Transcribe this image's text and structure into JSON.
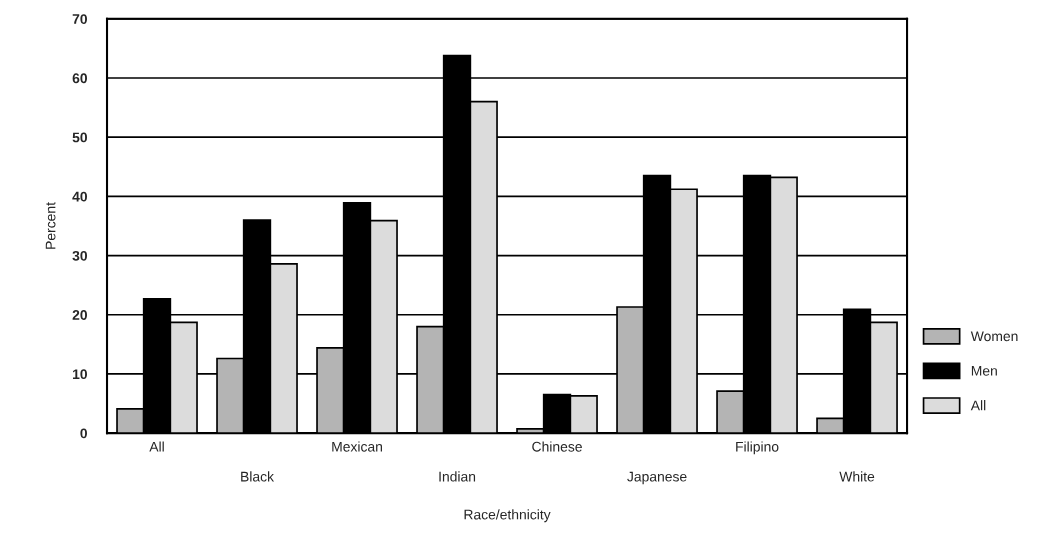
{
  "chart_data": {
    "type": "bar",
    "xlabel": "Race/ethnicity",
    "ylabel": "Percent",
    "categories": [
      "All",
      "Black",
      "Mexican",
      "Indian",
      "Chinese",
      "Japanese",
      "Filipino",
      "White"
    ],
    "series": [
      {
        "name": "Women",
        "color": "#b4b4b4",
        "values": [
          4.1,
          12.6,
          14.4,
          18,
          0.7,
          21.3,
          7.1,
          2.5
        ]
      },
      {
        "name": "Men",
        "color": "#000000",
        "values": [
          22.7,
          36,
          38.9,
          63.8,
          6.5,
          43.5,
          43.5,
          20.9
        ]
      },
      {
        "name": "All",
        "color": "#dcdcdc",
        "values": [
          18.7,
          28.6,
          35.9,
          56,
          6.3,
          41.2,
          43.2,
          18.7
        ]
      }
    ],
    "ylim": [
      0,
      70
    ],
    "yticks": [
      0,
      10,
      20,
      30,
      40,
      50,
      60,
      70
    ],
    "grid": "y",
    "legend": "right"
  }
}
